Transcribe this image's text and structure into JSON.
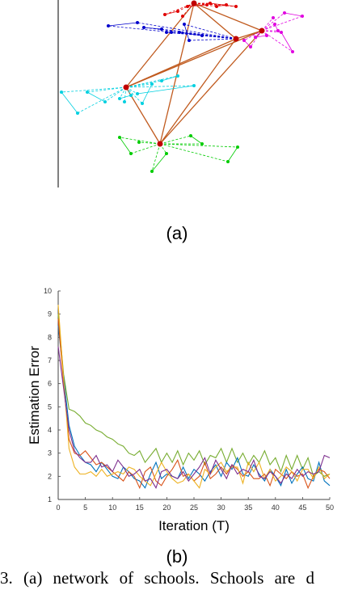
{
  "figure_a": {
    "label": "(a)",
    "hub_color": "#c00000",
    "hub_edge_color": "#c05a1e",
    "clusters": [
      {
        "name": "red",
        "color": "#e00000"
      },
      {
        "name": "blue",
        "color": "#0000cc"
      },
      {
        "name": "magenta",
        "color": "#e000e0"
      },
      {
        "name": "cyan",
        "color": "#00d0e0"
      },
      {
        "name": "green",
        "color": "#00cc00"
      }
    ]
  },
  "figure_b": {
    "label": "(b)"
  },
  "chart_data": {
    "type": "line",
    "xlabel": "Iteration (T)",
    "ylabel": "Estimation Error",
    "xlim": [
      0,
      50
    ],
    "ylim": [
      1,
      10
    ],
    "xticks": [
      0,
      5,
      10,
      15,
      20,
      25,
      30,
      35,
      40,
      45,
      50
    ],
    "yticks": [
      1,
      2,
      3,
      4,
      5,
      6,
      7,
      8,
      9,
      10
    ],
    "grid": false,
    "series": [
      {
        "color": "#77ac30",
        "values": [
          9.0,
          6.4,
          4.9,
          4.8,
          4.6,
          4.3,
          4.2,
          4.0,
          3.9,
          3.7,
          3.6,
          3.4,
          3.3,
          3.0,
          2.9,
          3.1,
          2.6,
          2.9,
          3.2,
          2.6,
          3.0,
          2.6,
          3.1,
          2.5,
          3.0,
          2.7,
          3.1,
          2.5,
          2.9,
          2.8,
          3.2,
          2.6,
          3.2,
          2.6,
          3.0,
          2.5,
          2.9,
          2.6,
          3.1,
          2.5,
          2.8,
          2.2,
          2.9,
          2.3,
          2.9,
          2.3,
          2.8,
          2.0,
          2.2,
          2.0,
          2.1
        ]
      },
      {
        "color": "#0072bd",
        "values": [
          8.5,
          6.3,
          4.2,
          3.3,
          2.9,
          2.6,
          2.5,
          2.2,
          2.6,
          2.3,
          2.0,
          1.9,
          2.4,
          2.2,
          1.9,
          1.8,
          1.5,
          2.1,
          2.6,
          1.9,
          2.1,
          2.0,
          1.9,
          2.4,
          1.9,
          2.3,
          2.1,
          1.8,
          2.2,
          2.5,
          2.0,
          2.6,
          2.3,
          2.8,
          2.1,
          2.0,
          2.5,
          2.1,
          1.8,
          2.3,
          2.0,
          1.6,
          2.3,
          1.7,
          2.1,
          2.4,
          1.9,
          1.8,
          2.6,
          1.8,
          1.6
        ]
      },
      {
        "color": "#d95319",
        "values": [
          8.8,
          6.0,
          3.6,
          3.0,
          2.9,
          3.1,
          2.8,
          2.5,
          2.6,
          2.4,
          2.2,
          2.0,
          1.8,
          2.2,
          2.0,
          1.5,
          2.2,
          2.4,
          1.8,
          1.6,
          2.0,
          2.3,
          2.7,
          2.0,
          2.1,
          1.8,
          2.0,
          2.6,
          1.9,
          2.1,
          2.4,
          2.1,
          2.5,
          2.3,
          2.0,
          2.2,
          1.9,
          1.9,
          2.1,
          1.6,
          2.3,
          2.1,
          1.9,
          2.2,
          2.0,
          2.1,
          1.5,
          2.0,
          2.3,
          2.2,
          1.9
        ]
      },
      {
        "color": "#edb120",
        "values": [
          9.4,
          6.2,
          3.2,
          2.4,
          2.1,
          2.1,
          2.2,
          2.0,
          2.3,
          2.0,
          2.1,
          2.2,
          2.1,
          2.4,
          2.3,
          2.0,
          1.8,
          1.6,
          2.1,
          2.6,
          2.2,
          1.9,
          1.7,
          1.8,
          2.1,
          1.8,
          1.5,
          2.3,
          2.1,
          2.4,
          2.6,
          2.2,
          2.4,
          2.4,
          1.7,
          2.6,
          2.2,
          2.6,
          1.9,
          2.3,
          1.8,
          2.0,
          2.4,
          2.2,
          1.8,
          2.3,
          2.3,
          1.9,
          2.4,
          1.9,
          2.1
        ]
      },
      {
        "color": "#7e2f8e",
        "values": [
          7.6,
          5.8,
          4.0,
          3.1,
          2.8,
          2.6,
          2.6,
          2.9,
          2.4,
          2.5,
          2.2,
          2.7,
          2.4,
          2.0,
          2.1,
          2.3,
          1.8,
          1.9,
          1.5,
          2.2,
          2.3,
          2.0,
          1.9,
          2.2,
          1.8,
          2.1,
          2.4,
          2.8,
          2.1,
          2.7,
          2.3,
          1.9,
          2.5,
          2.1,
          2.3,
          2.2,
          2.7,
          2.0,
          1.9,
          2.2,
          2.0,
          1.7,
          2.1,
          1.9,
          2.3,
          2.0,
          2.2,
          2.1,
          2.2,
          2.9,
          2.8
        ]
      }
    ]
  },
  "caption": {
    "text": "3. (a) network of schools. Schools are d"
  }
}
